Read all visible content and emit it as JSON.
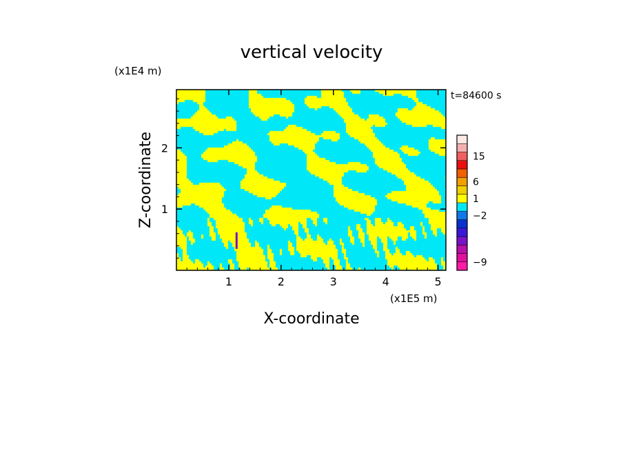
{
  "chart_data": {
    "type": "heatmap",
    "title": "vertical velocity",
    "xlabel": "X-coordinate",
    "ylabel": "Z-coordinate",
    "x_unit": "(x1E5 m)",
    "y_unit": "(x1E4 m)",
    "time_label": "t=84600 s",
    "xlim": [
      0,
      5.15
    ],
    "ylim": [
      0,
      2.95
    ],
    "x_ticks": [
      {
        "value": 1,
        "label": "1"
      },
      {
        "value": 2,
        "label": "2"
      },
      {
        "value": 3,
        "label": "3"
      },
      {
        "value": 4,
        "label": "4"
      },
      {
        "value": 5,
        "label": "5"
      }
    ],
    "y_ticks": [
      {
        "value": 1,
        "label": "1"
      },
      {
        "value": 2,
        "label": "2"
      }
    ],
    "colorbar": {
      "levels": [
        {
          "color": "#ff1aa8"
        },
        {
          "color": "#e0109c"
        },
        {
          "color": "#b80fa8"
        },
        {
          "color": "#7a12c8"
        },
        {
          "color": "#3a18d8"
        },
        {
          "color": "#0a30d0"
        },
        {
          "color": "#1078e8"
        },
        {
          "color": "#00e8f8"
        },
        {
          "color": "#ffff00"
        },
        {
          "color": "#f0d000"
        },
        {
          "color": "#f0a000"
        },
        {
          "color": "#f06000"
        },
        {
          "color": "#e81010"
        },
        {
          "color": "#f06060"
        },
        {
          "color": "#f4b0b0"
        },
        {
          "color": "#fde8e4"
        }
      ],
      "labels": [
        {
          "text": "15",
          "level": 13.5
        },
        {
          "text": "6",
          "level": 10.5
        },
        {
          "text": "1",
          "level": 8.5
        },
        {
          "text": "−2",
          "level": 6.5
        },
        {
          "text": "−9",
          "level": 1.0
        }
      ]
    },
    "dominant_colors": {
      "positive": "#ffff00",
      "negative": "#00e8f8",
      "strong_updraft": "#7a12c8"
    }
  }
}
